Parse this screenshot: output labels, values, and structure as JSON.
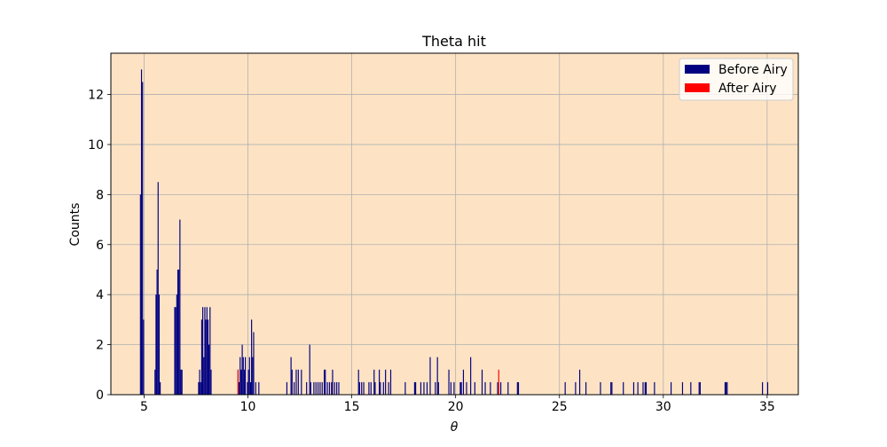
{
  "chart_data": {
    "type": "bar",
    "title": "Theta hit",
    "xlabel": "θ",
    "ylabel": "Counts",
    "xlim": [
      3.4,
      36.5
    ],
    "ylim": [
      0,
      13.65
    ],
    "xticks": [
      5,
      10,
      15,
      20,
      25,
      30,
      35
    ],
    "yticks": [
      0,
      2,
      4,
      6,
      8,
      10,
      12
    ],
    "grid": true,
    "legend_position": "top-right",
    "bin_width": 0.05,
    "series": [
      {
        "name": "Before Airy",
        "color": "#000080",
        "points": [
          [
            4.8,
            8
          ],
          [
            4.85,
            13
          ],
          [
            4.9,
            12.5
          ],
          [
            4.95,
            3
          ],
          [
            5.5,
            1
          ],
          [
            5.55,
            4
          ],
          [
            5.6,
            5
          ],
          [
            5.65,
            8.5
          ],
          [
            5.7,
            4
          ],
          [
            5.75,
            0.5
          ],
          [
            6.45,
            3.5
          ],
          [
            6.5,
            3.5
          ],
          [
            6.55,
            4
          ],
          [
            6.6,
            5
          ],
          [
            6.65,
            5
          ],
          [
            6.7,
            7
          ],
          [
            6.75,
            1
          ],
          [
            6.8,
            1
          ],
          [
            7.6,
            0.5
          ],
          [
            7.65,
            1
          ],
          [
            7.7,
            0.5
          ],
          [
            7.75,
            3
          ],
          [
            7.8,
            3.5
          ],
          [
            7.85,
            1.5
          ],
          [
            7.9,
            3.5
          ],
          [
            7.95,
            3
          ],
          [
            8.0,
            3.5
          ],
          [
            8.05,
            3
          ],
          [
            8.1,
            2
          ],
          [
            8.15,
            3.5
          ],
          [
            8.2,
            1
          ],
          [
            9.5,
            1
          ],
          [
            9.55,
            0.5
          ],
          [
            9.6,
            1.5
          ],
          [
            9.65,
            1
          ],
          [
            9.7,
            2
          ],
          [
            9.75,
            1.5
          ],
          [
            9.8,
            1
          ],
          [
            9.85,
            1.5
          ],
          [
            9.95,
            0.5
          ],
          [
            10.0,
            1
          ],
          [
            10.05,
            1.5
          ],
          [
            10.1,
            0.5
          ],
          [
            10.15,
            3
          ],
          [
            10.2,
            1.5
          ],
          [
            10.25,
            2.5
          ],
          [
            10.35,
            0.5
          ],
          [
            10.5,
            0.5
          ],
          [
            11.85,
            0.5
          ],
          [
            12.05,
            1.5
          ],
          [
            12.1,
            1
          ],
          [
            12.2,
            0.5
          ],
          [
            12.3,
            1
          ],
          [
            12.4,
            1
          ],
          [
            12.55,
            1
          ],
          [
            12.8,
            0.5
          ],
          [
            12.95,
            2
          ],
          [
            13.0,
            0.5
          ],
          [
            13.15,
            0.5
          ],
          [
            13.25,
            0.5
          ],
          [
            13.35,
            0.5
          ],
          [
            13.45,
            0.5
          ],
          [
            13.55,
            0.5
          ],
          [
            13.65,
            1
          ],
          [
            13.7,
            1
          ],
          [
            13.8,
            0.5
          ],
          [
            13.9,
            0.5
          ],
          [
            14.0,
            0.5
          ],
          [
            14.05,
            1
          ],
          [
            14.15,
            0.5
          ],
          [
            14.25,
            0.5
          ],
          [
            14.35,
            0.5
          ],
          [
            15.3,
            1
          ],
          [
            15.35,
            0.5
          ],
          [
            15.45,
            0.5
          ],
          [
            15.55,
            0.5
          ],
          [
            15.8,
            0.5
          ],
          [
            15.9,
            0.5
          ],
          [
            16.05,
            1
          ],
          [
            16.1,
            0.5
          ],
          [
            16.3,
            1
          ],
          [
            16.35,
            0.5
          ],
          [
            16.5,
            0.5
          ],
          [
            16.6,
            1
          ],
          [
            16.75,
            0.5
          ],
          [
            16.85,
            1
          ],
          [
            17.55,
            0.5
          ],
          [
            18.0,
            0.5
          ],
          [
            18.05,
            0.5
          ],
          [
            18.3,
            0.5
          ],
          [
            18.45,
            0.5
          ],
          [
            18.6,
            0.5
          ],
          [
            18.75,
            1.5
          ],
          [
            19.0,
            0.5
          ],
          [
            19.1,
            1.5
          ],
          [
            19.15,
            0.5
          ],
          [
            19.65,
            1
          ],
          [
            19.75,
            0.5
          ],
          [
            19.9,
            0.5
          ],
          [
            20.2,
            0.5
          ],
          [
            20.25,
            0.5
          ],
          [
            20.35,
            1
          ],
          [
            20.5,
            0.5
          ],
          [
            20.7,
            1.5
          ],
          [
            20.9,
            0.5
          ],
          [
            21.25,
            1
          ],
          [
            21.4,
            0.5
          ],
          [
            21.65,
            0.5
          ],
          [
            22.0,
            0.5
          ],
          [
            22.15,
            0.5
          ],
          [
            22.5,
            0.5
          ],
          [
            22.95,
            0.5
          ],
          [
            23.0,
            0.5
          ],
          [
            25.25,
            0.5
          ],
          [
            25.75,
            0.5
          ],
          [
            25.95,
            1
          ],
          [
            26.25,
            0.5
          ],
          [
            26.95,
            0.5
          ],
          [
            27.45,
            0.5
          ],
          [
            27.5,
            0.5
          ],
          [
            28.05,
            0.5
          ],
          [
            28.55,
            0.5
          ],
          [
            28.75,
            0.5
          ],
          [
            29.0,
            0.5
          ],
          [
            29.1,
            0.5
          ],
          [
            29.15,
            0.5
          ],
          [
            29.55,
            0.5
          ],
          [
            30.35,
            0.5
          ],
          [
            30.9,
            0.5
          ],
          [
            31.3,
            0.5
          ],
          [
            31.7,
            0.5
          ],
          [
            31.75,
            0.5
          ],
          [
            32.95,
            0.5
          ],
          [
            33.0,
            0.5
          ],
          [
            33.05,
            0.5
          ],
          [
            34.75,
            0.5
          ],
          [
            35.0,
            0.5
          ]
        ]
      },
      {
        "name": "After Airy",
        "color": "#ff0000",
        "points": [
          [
            9.5,
            1
          ],
          [
            22.05,
            1
          ]
        ]
      }
    ]
  },
  "style": {
    "plot_background": "#fde3c4",
    "grid_color": "#b0b0b0",
    "axis_color": "#000000"
  }
}
